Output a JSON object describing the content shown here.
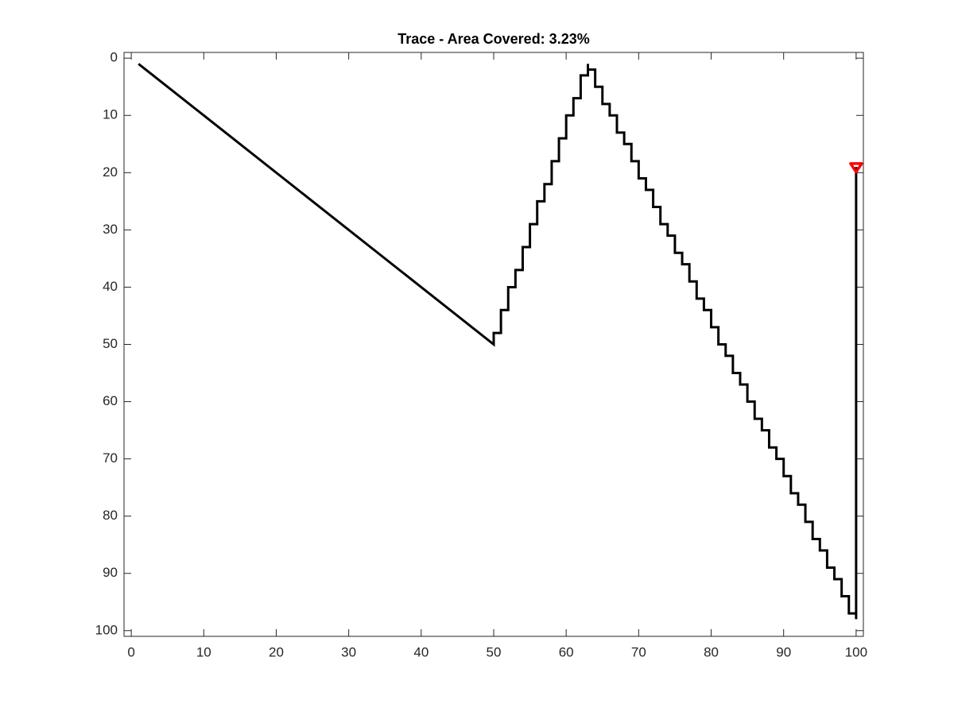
{
  "chart_data": {
    "type": "line",
    "title": "Trace - Area Covered: 3.23%",
    "xlim": [
      -1,
      101
    ],
    "ylim": [
      -1,
      101
    ],
    "y_reversed": true,
    "grid": false,
    "xticks": [
      0,
      10,
      20,
      30,
      40,
      50,
      60,
      70,
      80,
      90,
      100
    ],
    "yticks": [
      0,
      10,
      20,
      30,
      40,
      50,
      60,
      70,
      80,
      90,
      100
    ],
    "series": [
      {
        "color": "#000000",
        "x": [
          1,
          50,
          50,
          51,
          51,
          52,
          52,
          53,
          53,
          54,
          54,
          55,
          55,
          56,
          56,
          57,
          57,
          58,
          58,
          59,
          59,
          60,
          60,
          61,
          61,
          62,
          62,
          63,
          63,
          63,
          64,
          64,
          65,
          65,
          66,
          66,
          67,
          67,
          68,
          68,
          69,
          69,
          70,
          70,
          71,
          71,
          72,
          72,
          73,
          73,
          74,
          74,
          75,
          75,
          76,
          76,
          77,
          77,
          78,
          78,
          79,
          79,
          80,
          80,
          81,
          81,
          82,
          82,
          83,
          83,
          84,
          84,
          85,
          85,
          86,
          86,
          87,
          87,
          88,
          88,
          89,
          89,
          90,
          90,
          91,
          91,
          92,
          92,
          93,
          93,
          94,
          94,
          95,
          95,
          96,
          96,
          97,
          97,
          98,
          98,
          99,
          99,
          100,
          100,
          100
        ],
        "values": [
          1,
          50,
          48,
          48,
          44,
          44,
          40,
          40,
          37,
          37,
          33,
          33,
          29,
          29,
          25,
          25,
          22,
          22,
          18,
          18,
          14,
          14,
          10,
          10,
          7,
          7,
          3,
          3,
          1,
          2,
          2,
          5,
          5,
          8,
          8,
          10,
          10,
          13,
          13,
          15,
          15,
          18,
          18,
          21,
          21,
          23,
          23,
          26,
          26,
          29,
          29,
          31,
          31,
          34,
          34,
          36,
          36,
          39,
          39,
          42,
          42,
          44,
          44,
          47,
          47,
          50,
          50,
          52,
          52,
          55,
          55,
          57,
          57,
          60,
          60,
          63,
          63,
          65,
          65,
          68,
          68,
          70,
          70,
          73,
          73,
          76,
          76,
          78,
          78,
          81,
          81,
          84,
          84,
          86,
          86,
          89,
          89,
          91,
          91,
          94,
          94,
          97,
          97,
          98,
          19
        ]
      },
      {
        "color": "#ff0000",
        "marker": "triangle-down",
        "x": [
          100
        ],
        "values": [
          19
        ]
      }
    ]
  }
}
